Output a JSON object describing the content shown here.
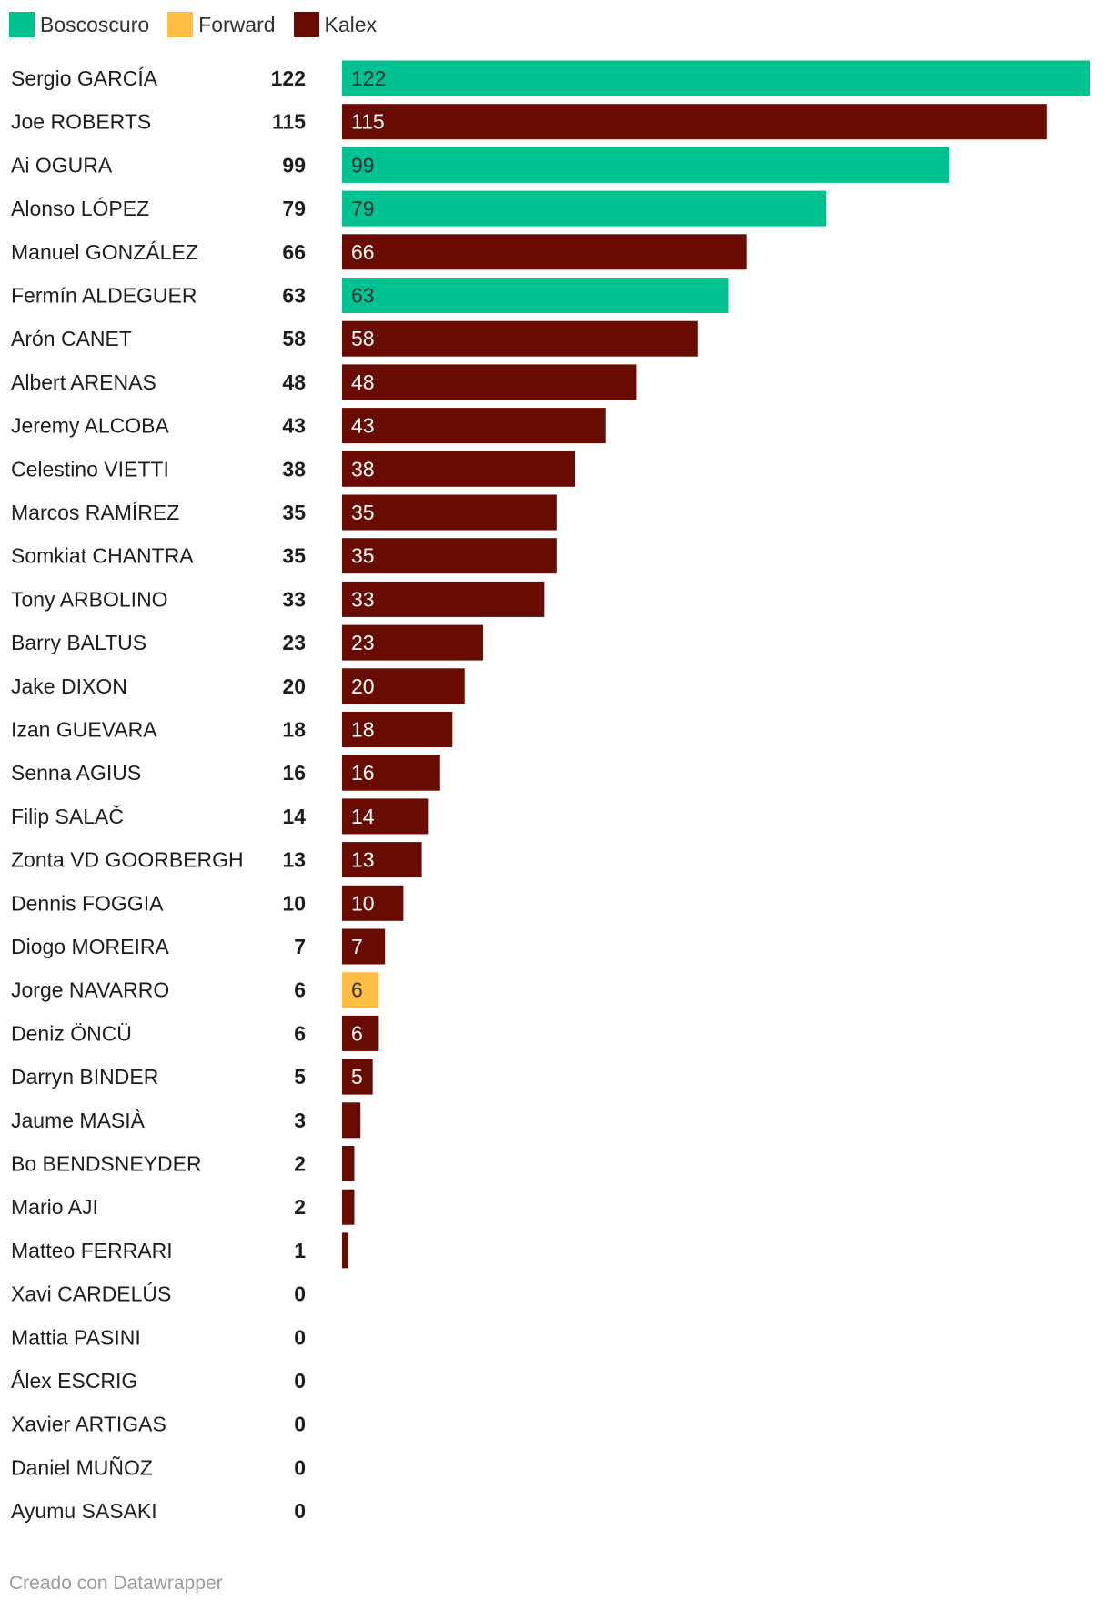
{
  "legend": [
    {
      "name": "Boscoscuro",
      "color": "#00c290"
    },
    {
      "name": "Forward",
      "color": "#ffbd45"
    },
    {
      "name": "Kalex",
      "color": "#690b00"
    }
  ],
  "footer": {
    "credit": "Creado con Datawrapper"
  },
  "chart_data": {
    "type": "bar",
    "orientation": "horizontal",
    "title": "",
    "xlabel": "",
    "ylabel": "",
    "xlim": [
      0,
      122
    ],
    "grid": false,
    "legend_position": "top-left",
    "colors": {
      "Boscoscuro": "#00c290",
      "Forward": "#ffbd45",
      "Kalex": "#690b00"
    },
    "categories": [
      "Sergio GARCÍA",
      "Joe ROBERTS",
      "Ai OGURA",
      "Alonso LÓPEZ",
      "Manuel GONZÁLEZ",
      "Fermín ALDEGUER",
      "Arón CANET",
      "Albert ARENAS",
      "Jeremy ALCOBA",
      "Celestino VIETTI",
      "Marcos RAMÍREZ",
      "Somkiat CHANTRA",
      "Tony ARBOLINO",
      "Barry BALTUS",
      "Jake DIXON",
      "Izan GUEVARA",
      "Senna AGIUS",
      "Filip SALAČ",
      "Zonta VD GOORBERGH",
      "Dennis FOGGIA",
      "Diogo MOREIRA",
      "Jorge NAVARRO",
      "Deniz ÖNCÜ",
      "Darryn BINDER",
      "Jaume MASIÀ",
      "Bo BENDSNEYDER",
      "Mario AJI",
      "Matteo FERRARI",
      "Xavi CARDELÚS",
      "Mattia PASINI",
      "Álex ESCRIG",
      "Xavier ARTIGAS",
      "Daniel MUÑOZ",
      "Ayumu SASAKI"
    ],
    "values": [
      122,
      115,
      99,
      79,
      66,
      63,
      58,
      48,
      43,
      38,
      35,
      35,
      33,
      23,
      20,
      18,
      16,
      14,
      13,
      10,
      7,
      6,
      6,
      5,
      3,
      2,
      2,
      1,
      0,
      0,
      0,
      0,
      0,
      0
    ],
    "teams": [
      "Boscoscuro",
      "Kalex",
      "Boscoscuro",
      "Boscoscuro",
      "Kalex",
      "Boscoscuro",
      "Kalex",
      "Kalex",
      "Kalex",
      "Kalex",
      "Kalex",
      "Kalex",
      "Kalex",
      "Kalex",
      "Kalex",
      "Kalex",
      "Kalex",
      "Kalex",
      "Kalex",
      "Kalex",
      "Kalex",
      "Forward",
      "Kalex",
      "Kalex",
      "Kalex",
      "Kalex",
      "Kalex",
      "Kalex",
      "Kalex",
      "Kalex",
      "Kalex",
      "Kalex",
      "Kalex",
      "Kalex"
    ],
    "bar_label_min": 5
  }
}
